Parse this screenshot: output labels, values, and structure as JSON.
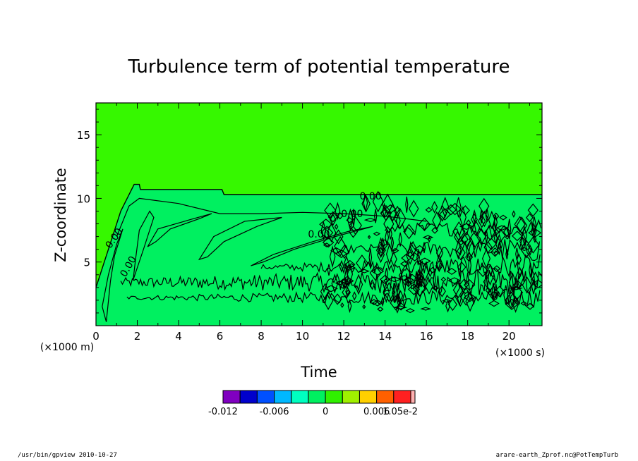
{
  "chart_data": {
    "type": "heatmap",
    "title": "Turbulence term of potential temperature",
    "xlabel": "Time",
    "x_unit": "(×1000 s)",
    "ylabel": "Z-coordinate",
    "y_unit": "(×1000 m)",
    "xlim": [
      0,
      21.6
    ],
    "ylim": [
      0,
      17.5
    ],
    "x_ticks": [
      0,
      2,
      4,
      6,
      8,
      10,
      12,
      14,
      16,
      18,
      20
    ],
    "y_ticks": [
      5,
      10,
      15
    ],
    "grid": false,
    "contour_labels": [
      {
        "text": "0.00",
        "x": 13.3,
        "y": 10.2
      },
      {
        "text": "0.00",
        "x": 12.4,
        "y": 8.8
      },
      {
        "text": "0.00",
        "x": 10.8,
        "y": 7.2
      },
      {
        "text": "0.00",
        "x": 1.0,
        "y": 7.0
      },
      {
        "text": "0.00",
        "x": 1.7,
        "y": 4.8
      }
    ],
    "zero_contour_top": [
      [
        0,
        3
      ],
      [
        0.6,
        6
      ],
      [
        1.2,
        9
      ],
      [
        1.85,
        11.1
      ],
      [
        2.1,
        11.1
      ],
      [
        2.15,
        10.7
      ],
      [
        6.1,
        10.7
      ],
      [
        6.2,
        10.3
      ],
      [
        21.6,
        10.3
      ]
    ],
    "colorbar": {
      "levels": [
        -0.012,
        -0.01,
        -0.008,
        -0.006,
        -0.004,
        -0.002,
        0,
        0.002,
        0.004,
        0.006,
        0.008,
        0.0105
      ],
      "colors": [
        "#8000c0",
        "#0000cc",
        "#0050ff",
        "#00b8ff",
        "#00ffc0",
        "#00f060",
        "#30f000",
        "#a0f000",
        "#ffd000",
        "#ff6000",
        "#ff2020",
        "#ffb0b0"
      ],
      "tick_labels": [
        "-0.012",
        "-0.006",
        "0",
        "0.006",
        "1.05e-2"
      ]
    },
    "field_colors": {
      "background": "#36f800",
      "inner": "#00f060"
    }
  },
  "footer": {
    "left": "/usr/bin/gpview  2010-10-27",
    "right": "arare-earth_Zprof.nc@PotTempTurb"
  }
}
